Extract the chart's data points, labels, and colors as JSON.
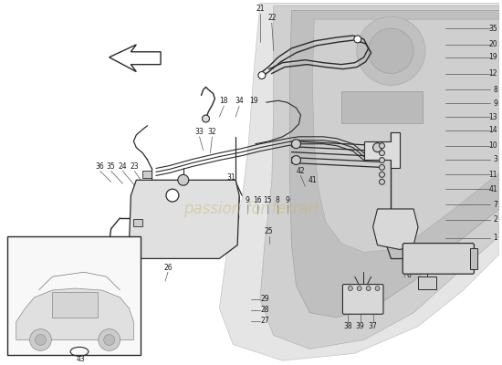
{
  "bg_color": "#ffffff",
  "line_color": "#2a2a2a",
  "gray_light": "#d8d8d8",
  "gray_mid": "#c0c0c0",
  "gray_dark": "#a8a8a8",
  "watermark_text": "passion for ferrari",
  "watermark_color": "#c8b86e",
  "watermark_alpha": 0.45,
  "figsize": [
    5.5,
    4.0
  ],
  "dpi": 100
}
